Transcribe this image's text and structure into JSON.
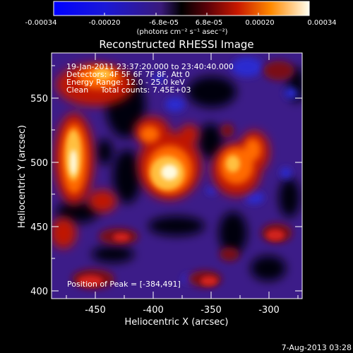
{
  "colorbar": {
    "ticks": [
      "-0.00034",
      "-0.00020",
      "-6.8e-05",
      "6.8e-05",
      "0.00020",
      "0.00034"
    ],
    "unit": "(photons cm⁻² s⁻¹ asec⁻²)",
    "min": -0.00034,
    "max": 0.00034
  },
  "title": "Reconstructed RHESSI Image",
  "info": {
    "time": "19-Jan-2011 23:37:20.000 to 23:40:40.000",
    "detectors": "Detectors: 4F 5F 6F 7F 8F, Att 0",
    "energy": "Energy Range: 12.0 - 25.0 keV",
    "clean": "Clean     Total counts: 7.45E+03"
  },
  "peak_text": "Position of Peak = [-384,491]",
  "axes": {
    "xlabel": "Heliocentric X (arcsec)",
    "ylabel": "Heliocentric Y (arcsec)",
    "xticks": [
      "-450",
      "-400",
      "-350",
      "-300"
    ],
    "yticks": [
      "400",
      "450",
      "500",
      "550"
    ],
    "xlim": [
      -480,
      -288
    ],
    "ylim": [
      392,
      584
    ]
  },
  "footer_date": "7-Aug-2013 03:28"
}
